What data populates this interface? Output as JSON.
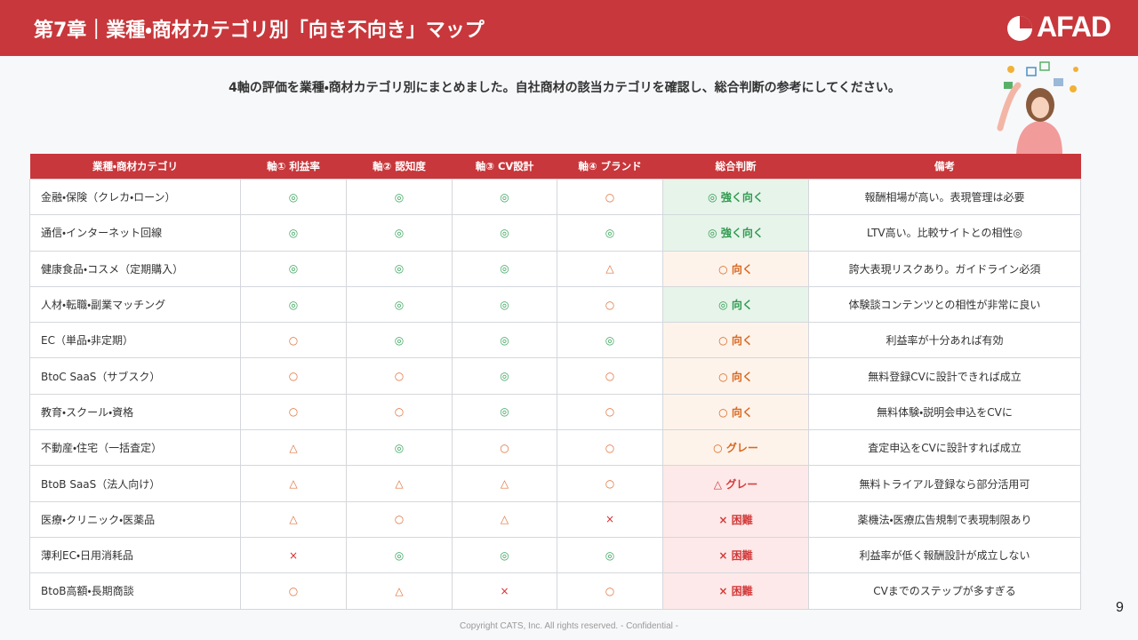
{
  "header": {
    "title": "第7章｜業種・商材カテゴリ別「向き不向き」マップ",
    "logo": "AFAD"
  },
  "subtitle": "4軸の評価を業種・商材カテゴリ別にまとめました。自社商材の該当カテゴリを確認し、総合判断の参考にしてください。",
  "table": {
    "columns": [
      "業種・商材カテゴリ",
      "軸① 利益率",
      "軸② 認知度",
      "軸③ CV設計",
      "軸④ ブランド",
      "総合判断",
      "備考"
    ],
    "rows": [
      [
        "金融・保険（クレカ・ローン）",
        "◎",
        "◎",
        "◎",
        "○",
        "◎ 強く向く",
        "報酬相場が高い。表現管理は必要"
      ],
      [
        "通信・インターネット回線",
        "◎",
        "◎",
        "◎",
        "◎",
        "◎ 強く向く",
        "LTV高い。比較サイトとの相性◎"
      ],
      [
        "健康食品・コスメ（定期購入）",
        "◎",
        "◎",
        "◎",
        "△",
        "○ 向く",
        "誇大表現リスクあり。ガイドライン必須"
      ],
      [
        "人材・転職・副業マッチング",
        "◎",
        "◎",
        "◎",
        "○",
        "◎ 向く",
        "体験談コンテンツとの相性が非常に良い"
      ],
      [
        "EC（単品・非定期）",
        "○",
        "◎",
        "◎",
        "◎",
        "○ 向く",
        "利益率が十分あれば有効"
      ],
      [
        "BtoC SaaS（サブスク）",
        "○",
        "○",
        "◎",
        "○",
        "○ 向く",
        "無料登録CVに設計できれば成立"
      ],
      [
        "教育・スクール・資格",
        "○",
        "○",
        "◎",
        "○",
        "○ 向く",
        "無料体験・説明会申込をCVに"
      ],
      [
        "不動産・住宅（一括査定）",
        "△",
        "◎",
        "○",
        "○",
        "○ グレー",
        "査定申込をCVに設計すれば成立"
      ],
      [
        "BtoB SaaS（法人向け）",
        "△",
        "△",
        "△",
        "○",
        "△ グレー",
        "無料トライアル登録なら部分活用可"
      ],
      [
        "医療・クリニック・医薬品",
        "△",
        "○",
        "△",
        "×",
        "× 困難",
        "薬機法・医療広告規制で表現制限あり"
      ],
      [
        "薄利EC・日用消耗品",
        "×",
        "◎",
        "◎",
        "◎",
        "× 困難",
        "利益率が低く報酬設計が成立しない"
      ],
      [
        "BtoB高額・長期商談",
        "○",
        "△",
        "×",
        "○",
        "× 困難",
        "CVまでのステップが多すぎる"
      ]
    ]
  },
  "page_number": "9",
  "footer": "Copyright CATS, Inc. All rights reserved.  - Confidential -"
}
